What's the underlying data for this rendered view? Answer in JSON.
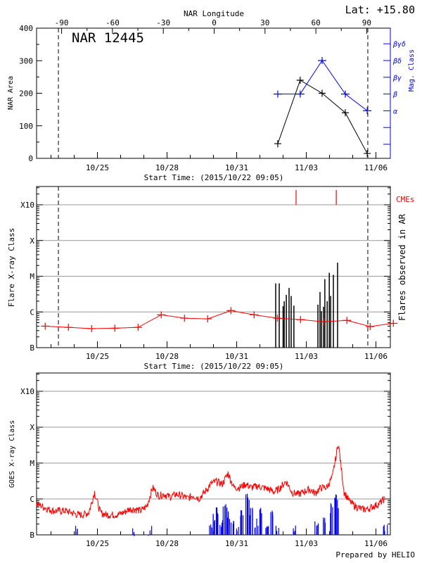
{
  "header": {
    "lat_label": "Lat: +15.80",
    "region_label": "NAR 12445",
    "longitude_axis_label": "NAR Longitude",
    "footer": "Prepared by HELIO"
  },
  "chart_data": [
    {
      "type": "line",
      "panel": "nar-area",
      "start_time": "2015/10/22 09:05",
      "xlabel": "Start Time: (2015/10/22 09:05)",
      "x_ticks": [
        "10/25",
        "10/28",
        "10/31",
        "11/03",
        "11/06"
      ],
      "ylabel": "NAR Area",
      "ylim": [
        0,
        400
      ],
      "y_ticks": [
        0,
        100,
        200,
        300,
        400
      ],
      "top_axis": {
        "label": "NAR Longitude",
        "ticks": [
          -90,
          -60,
          -30,
          0,
          30,
          60,
          90
        ]
      },
      "dashed_lines": [
        "10/23 07:40",
        "11/05 15:35"
      ],
      "area": {
        "color": "#000000",
        "x": [
          "11/01 18:30",
          "11/02 17:40",
          "11/03 16:20",
          "11/04 16:20",
          "11/05 15:00"
        ],
        "values": [
          45,
          240,
          200,
          140,
          15
        ]
      },
      "mag_class": {
        "color": "#0000ff",
        "axis_label": "Mag. Class",
        "levels": [
          "",
          "",
          "α",
          "β",
          "βγ",
          "βδ",
          "βγδ"
        ],
        "x": [
          "11/01 18:30",
          "11/02 17:40",
          "11/03 16:20",
          "11/04 16:20",
          "11/05 15:00"
        ],
        "values": [
          "β",
          "β",
          "βδ",
          "β",
          "α"
        ]
      }
    },
    {
      "type": "line",
      "panel": "flare-class",
      "start_time": "2015/10/22 09:05",
      "xlabel": "Start Time: (2015/10/22 09:05)",
      "x_ticks": [
        "10/25",
        "10/28",
        "10/31",
        "11/03",
        "11/06"
      ],
      "ylabel": "Flare X-ray Class",
      "right_label": "Flares observed in AR",
      "y_scale": "log",
      "y_ticks": [
        {
          "label": "B",
          "flux": 1e-07
        },
        {
          "label": "C",
          "flux": 1e-06
        },
        {
          "label": "M",
          "flux": 1e-05
        },
        {
          "label": "X",
          "flux": 0.0001
        },
        {
          "label": "X10",
          "flux": 0.001
        }
      ],
      "grid": true,
      "dashed_lines": [
        "10/23 07:40",
        "11/05 15:35"
      ],
      "cmes": {
        "label": "CMEs",
        "color": "#ff0000",
        "x": [
          "11/02 13:25",
          "11/04 07:00"
        ]
      },
      "background": {
        "color": "#ff0000",
        "x": [
          "10/22 18:00",
          "10/23 18:00",
          "10/24 18:00",
          "10/25 18:00",
          "10/26 18:00",
          "10/27 18:00",
          "10/28 18:00",
          "10/29 18:00",
          "10/30 18:00",
          "10/31 18:00",
          "11/01 18:00",
          "11/02 18:00",
          "11/03 18:00",
          "11/04 18:00",
          "11/05 18:00",
          "11/06 18:00"
        ],
        "values": [
          4e-07,
          3.7e-07,
          3.4e-07,
          3.5e-07,
          3.7e-07,
          8.3e-07,
          6.7e-07,
          6.4e-07,
          1.09e-06,
          8.3e-07,
          6.7e-07,
          6.1e-07,
          5.3e-07,
          5.8e-07,
          3.9e-07,
          4.8e-07
        ]
      },
      "flares": {
        "color": "#000000",
        "x": [
          "11/01 16:20",
          "11/01 20:00",
          "11/02 00:00",
          "11/02 01:10",
          "11/02 03:20",
          "11/02 06:10",
          "11/02 08:20",
          "11/02 11:10",
          "11/03 12:00",
          "11/03 14:10",
          "11/03 15:40",
          "11/03 17:50",
          "11/03 19:10",
          "11/03 21:35",
          "11/03 23:45",
          "11/04 01:10",
          "11/04 04:00",
          "11/04 08:20"
        ],
        "values": [
          6.3e-06,
          6.3e-06,
          1.45e-06,
          2e-06,
          3e-06,
          4.7e-06,
          2.8e-06,
          1.5e-06,
          1.6e-06,
          3.6e-06,
          1.05e-06,
          1.4e-06,
          8.3e-06,
          2e-06,
          1.25e-05,
          2.8e-06,
          1.1e-05,
          2.4e-05
        ]
      }
    },
    {
      "type": "line",
      "panel": "goes-xray",
      "start_time": "2015/10/22 09:05",
      "x_ticks": [
        "10/25",
        "10/28",
        "10/31",
        "11/03",
        "11/06"
      ],
      "ylabel": "GOES X-ray Class",
      "y_scale": "log",
      "y_ticks": [
        {
          "label": "B",
          "flux": 1e-07
        },
        {
          "label": "C",
          "flux": 1e-06
        },
        {
          "label": "M",
          "flux": 1e-05
        },
        {
          "label": "X",
          "flux": 0.0001
        },
        {
          "label": "X10",
          "flux": 0.001
        }
      ],
      "grid": true,
      "long_channel": {
        "color": "#ff0000",
        "cadence_hours": 6,
        "values": [
          7e-07,
          6e-07,
          5e-07,
          4.5e-07,
          4.5e-07,
          4.5e-07,
          4e-07,
          3.5e-07,
          3.5e-07,
          4e-07,
          1.5e-06,
          4e-07,
          3.5e-07,
          3.5e-07,
          3.5e-07,
          4e-07,
          5e-07,
          5e-07,
          4.5e-07,
          6e-07,
          2e-06,
          1.2e-06,
          1.3e-06,
          1.1e-06,
          1.3e-06,
          1.2e-06,
          1e-06,
          1.2e-06,
          1e-06,
          1.5e-06,
          2.5e-06,
          3e-06,
          2.5e-06,
          5e-06,
          2e-06,
          2e-06,
          2.5e-06,
          2e-06,
          2.2e-06,
          2e-06,
          1.8e-06,
          1.5e-06,
          2e-06,
          3e-06,
          1.5e-06,
          1.3e-06,
          1.5e-06,
          1.8e-06,
          1.4e-06,
          2e-06,
          2e-06,
          4e-06,
          3.5e-05,
          1.5e-06,
          8e-07,
          6e-07,
          5e-07,
          5e-07,
          6e-07,
          7e-07,
          1e-06
        ]
      },
      "short_channel": {
        "color": "#0000ff",
        "x": [
          "10/24 03:20",
          "10/26 13:25",
          "10/27 06:10",
          "10/29 21:35",
          "10/30 01:10",
          "10/30 04:45",
          "10/30 08:20",
          "10/30 12:00",
          "10/30 15:35",
          "10/30 19:10",
          "10/31 01:10",
          "10/31 06:10",
          "10/31 11:10",
          "10/31 15:35",
          "10/31 20:35",
          "11/01 01:50",
          "11/01 07:35",
          "11/01 13:25",
          "11/01 18:30",
          "11/02 12:40",
          "11/03 10:35",
          "11/03 17:50",
          "11/04 01:10",
          "11/04 05:25",
          "11/04 08:20",
          "11/06 09:50"
        ],
        "values": [
          1.9e-07,
          1.7e-07,
          1.8e-07,
          2.5e-07,
          3.9e-07,
          6.1e-07,
          3.1e-07,
          8.7e-07,
          4.9e-07,
          2.5e-07,
          1.9e-07,
          4.9e-07,
          1.5e-06,
          6.1e-07,
          3.1e-07,
          7.6e-07,
          3.1e-07,
          4.9e-07,
          1.9e-07,
          1.9e-07,
          2.5e-07,
          3.1e-07,
          7.6e-07,
          1.5e-06,
          9.5e-07,
          2.5e-07
        ]
      }
    }
  ]
}
